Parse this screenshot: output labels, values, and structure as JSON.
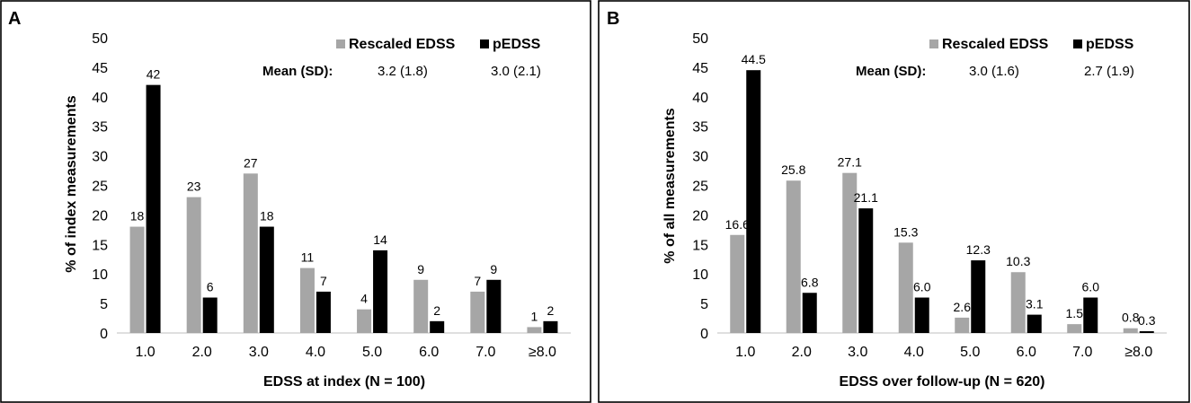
{
  "colors": {
    "rescaled": "#a6a6a6",
    "pedss": "#000000",
    "axis": "#bfbfbf"
  },
  "chart_data": [
    {
      "type": "bar",
      "panel": "A",
      "xlabel": "EDSS at index (N = 100)",
      "ylabel": "% of index measurements",
      "ylim": [
        0,
        50
      ],
      "yticks": [
        "0",
        "5",
        "10",
        "15",
        "20",
        "25",
        "30",
        "35",
        "40",
        "45",
        "50"
      ],
      "categories": [
        "1.0",
        "2.0",
        "3.0",
        "4.0",
        "5.0",
        "6.0",
        "7.0",
        "≥8.0"
      ],
      "series": [
        {
          "name": "Rescaled EDSS",
          "values": [
            18,
            23,
            27,
            11,
            4,
            9,
            7,
            1
          ],
          "labels": [
            "18",
            "23",
            "27",
            "11",
            "4",
            "9",
            "7",
            "1"
          ]
        },
        {
          "name": "pEDSS",
          "values": [
            42,
            6,
            18,
            7,
            14,
            2,
            9,
            2
          ],
          "labels": [
            "42",
            "6",
            "18",
            "7",
            "14",
            "2",
            "9",
            "2"
          ]
        }
      ],
      "legend": [
        "Rescaled EDSS",
        "pEDSS"
      ],
      "mean_sd_label": "Mean (SD):",
      "mean_sd_values": [
        "3.2 (1.8)",
        "3.0 (2.1)"
      ]
    },
    {
      "type": "bar",
      "panel": "B",
      "xlabel": "EDSS over follow-up (N = 620)",
      "ylabel": "% of all measurements",
      "ylim": [
        0,
        50
      ],
      "yticks": [
        "0",
        "5",
        "10",
        "15",
        "20",
        "25",
        "30",
        "35",
        "40",
        "45",
        "50"
      ],
      "categories": [
        "1.0",
        "2.0",
        "3.0",
        "4.0",
        "5.0",
        "6.0",
        "7.0",
        "≥8.0"
      ],
      "series": [
        {
          "name": "Rescaled EDSS",
          "values": [
            16.6,
            25.8,
            27.1,
            15.3,
            2.6,
            10.3,
            1.5,
            0.8
          ],
          "labels": [
            "16.6",
            "25.8",
            "27.1",
            "15.3",
            "2.6",
            "10.3",
            "1.5",
            "0.8"
          ]
        },
        {
          "name": "pEDSS",
          "values": [
            44.5,
            6.8,
            21.1,
            6.0,
            12.3,
            3.1,
            6.0,
            0.3
          ],
          "labels": [
            "44.5",
            "6.8",
            "21.1",
            "6.0",
            "12.3",
            "3.1",
            "6.0",
            "0.3"
          ]
        }
      ],
      "legend": [
        "Rescaled EDSS",
        "pEDSS"
      ],
      "mean_sd_label": "Mean (SD):",
      "mean_sd_values": [
        "3.0 (1.6)",
        "2.7 (1.9)"
      ]
    }
  ]
}
